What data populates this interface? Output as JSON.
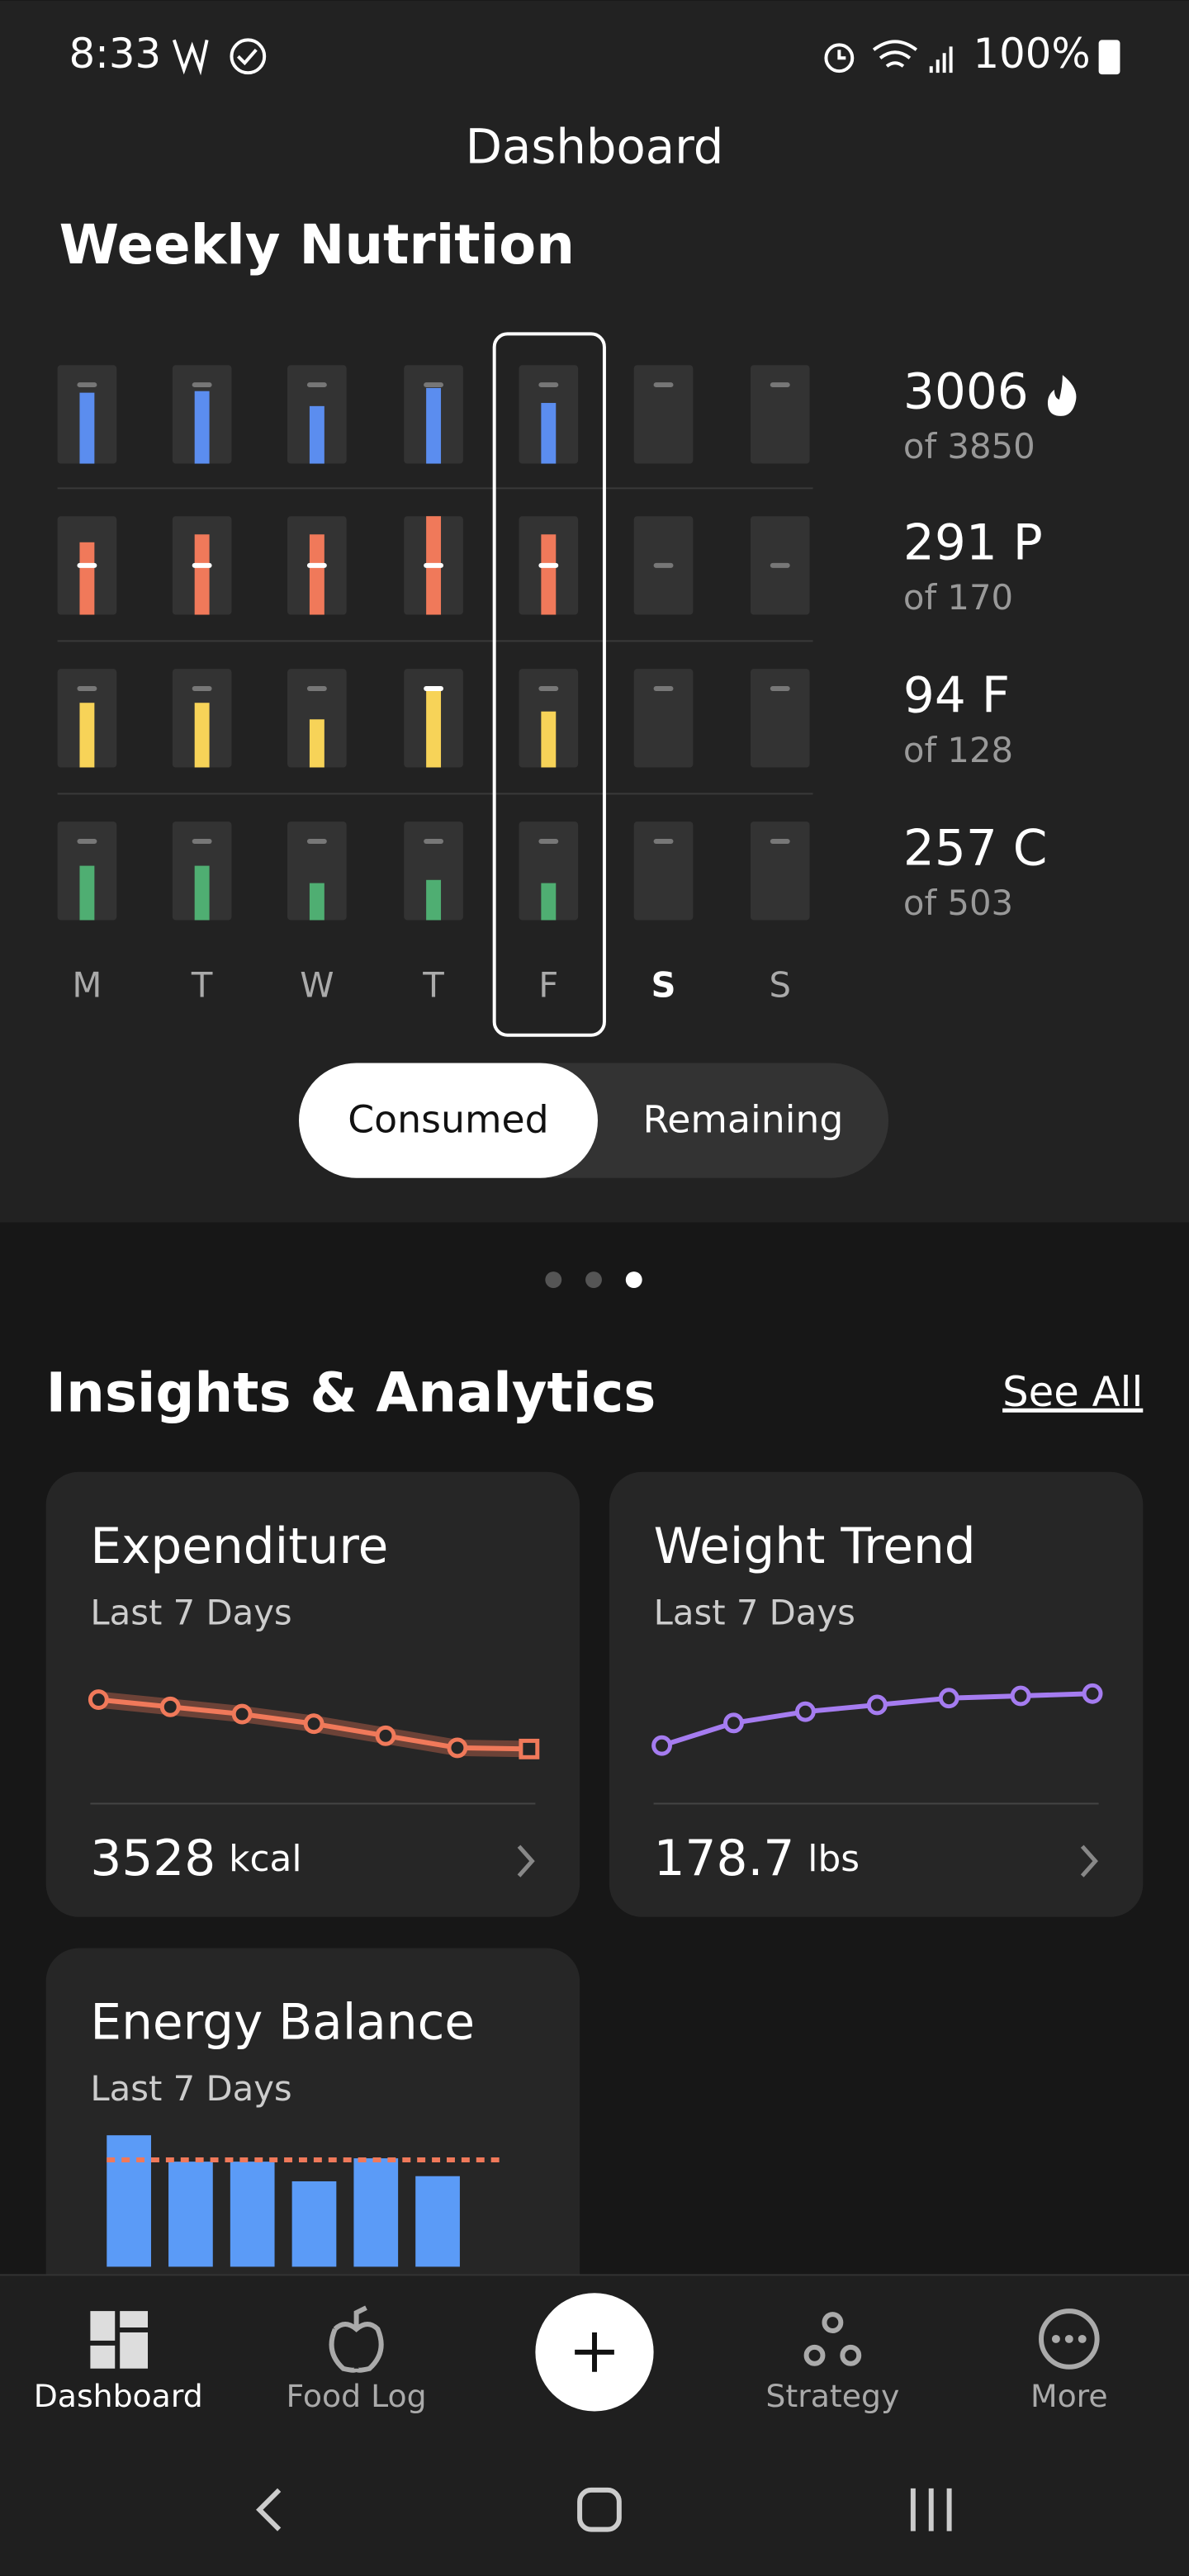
{
  "status_bar": {
    "time": "8:33",
    "battery": "100%"
  },
  "header": {
    "title": "Dashboard"
  },
  "weekly_nutrition": {
    "title": "Weekly Nutrition",
    "days": [
      "M",
      "T",
      "W",
      "T",
      "F",
      "S",
      "S"
    ],
    "selected_day": 4,
    "today": 5,
    "target": 100,
    "rows": [
      {
        "color": "#5b8def",
        "ylim": [
          0,
          125
        ],
        "values": [
          90,
          92,
          73,
          96,
          77,
          null,
          null
        ],
        "total": "3006",
        "goal": "of 3850"
      },
      {
        "color": "#f0795a",
        "ylim": [
          0,
          200
        ],
        "values": [
          147,
          163,
          163,
          200,
          163,
          null,
          null
        ],
        "total": "291 P",
        "goal": "of 170"
      },
      {
        "color": "#f7d358",
        "ylim": [
          0,
          125
        ],
        "values": [
          82,
          82,
          61,
          100,
          71,
          null,
          null
        ],
        "total": "94 F",
        "goal": "of 128"
      },
      {
        "color": "#4fae72",
        "ylim": [
          0,
          125
        ],
        "values": [
          69,
          69,
          47,
          51,
          47,
          null,
          null
        ],
        "total": "257 C",
        "goal": "of 503"
      }
    ],
    "toggle": {
      "options": [
        "Consumed",
        "Remaining"
      ],
      "selected": 0
    }
  },
  "pager": {
    "count": 3,
    "active": 2
  },
  "insights": {
    "title": "Insights & Analytics",
    "link": "See All",
    "cards": [
      {
        "title": "Expenditure",
        "subtitle": "Last 7 Days",
        "color": "#f0795a",
        "ylim": [
          3500,
          3650
        ],
        "values": [
          3610,
          3598,
          3586,
          3570,
          3550,
          3530,
          3528
        ],
        "value": "3528",
        "unit": "kcal"
      },
      {
        "title": "Weight Trend",
        "subtitle": "Last 7 Days",
        "color": "#a57cf0",
        "ylim": [
          175.5,
          179.5
        ],
        "values": [
          176.4,
          177.4,
          177.9,
          178.2,
          178.5,
          178.6,
          178.7
        ],
        "value": "178.7",
        "unit": "lbs"
      }
    ],
    "energy_balance": {
      "title": "Energy Balance",
      "subtitle": "Last 7 Days",
      "color": "#5b9bf7",
      "line_color": "#f0795a",
      "ylim": [
        0,
        4500
      ],
      "values": [
        4340,
        3470,
        3470,
        2820,
        3580,
        2990
      ],
      "line_value": 3528
    }
  },
  "nav": {
    "items": [
      "Dashboard",
      "Food Log",
      "Strategy",
      "More"
    ],
    "active": 0
  }
}
